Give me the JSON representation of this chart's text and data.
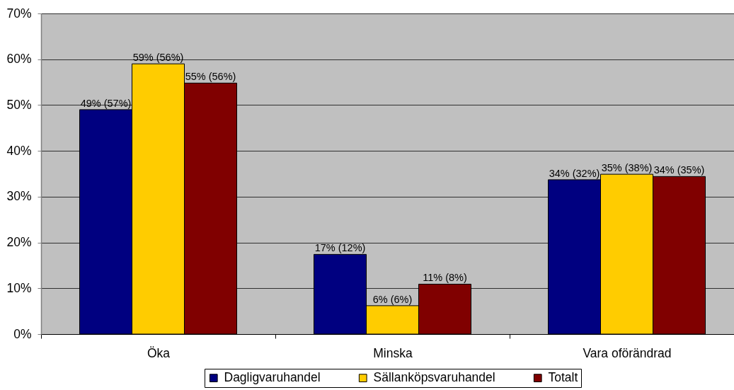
{
  "chart_data": {
    "type": "bar",
    "categories": [
      "Öka",
      "Minska",
      "Vara oförändrad"
    ],
    "series": [
      {
        "name": "Dagligvaruhandel",
        "color": "#000080",
        "values": [
          49,
          17.4,
          33.7
        ],
        "value_labels": [
          "49% (57%)",
          "17% (12%)",
          "34% (32%)"
        ]
      },
      {
        "name": "Sällanköpsvaruhandel",
        "color": "#ffcc00",
        "values": [
          59,
          6.2,
          34.9
        ],
        "value_labels": [
          "59% (56%)",
          "6% (6%)",
          "35% (38%)"
        ]
      },
      {
        "name": "Totalt",
        "color": "#800000",
        "values": [
          54.8,
          10.9,
          34.4
        ],
        "value_labels": [
          "55% (56%)",
          "11% (8%)",
          "34% (35%)"
        ]
      }
    ],
    "ylim": [
      0,
      70
    ],
    "yticks": [
      {
        "value": 0,
        "label": "0%"
      },
      {
        "value": 10,
        "label": "10%"
      },
      {
        "value": 20,
        "label": "20%"
      },
      {
        "value": 30,
        "label": "30%"
      },
      {
        "value": 40,
        "label": "40%"
      },
      {
        "value": 50,
        "label": "50%"
      },
      {
        "value": 60,
        "label": "60%"
      },
      {
        "value": 70,
        "label": "70%"
      }
    ],
    "grid": "y",
    "legend": "bottom"
  }
}
